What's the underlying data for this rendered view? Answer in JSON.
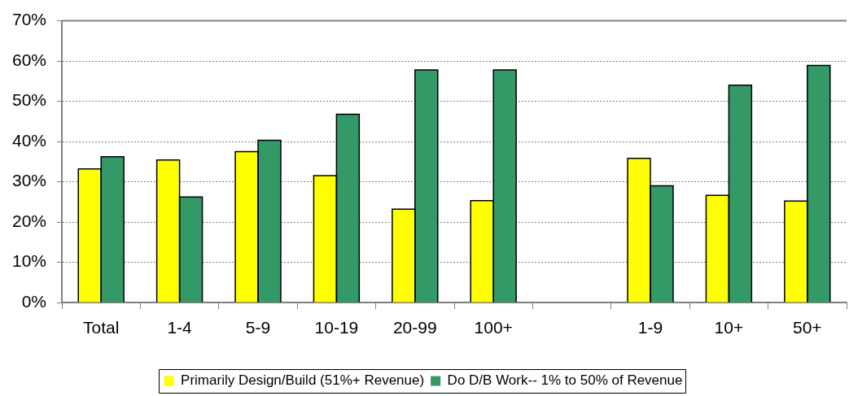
{
  "chart_data": {
    "type": "bar",
    "categories": [
      "Total",
      "1-4",
      "5-9",
      "10-19",
      "20-99",
      "100+",
      null,
      "1-9",
      "10+",
      "50+"
    ],
    "series": [
      {
        "name": "Primarily Design/Build (51%+ Revenue)",
        "color": "#ffff00",
        "values": [
          33.2,
          35.4,
          37.5,
          31.5,
          23.2,
          25.3,
          null,
          35.8,
          26.6,
          25.2
        ]
      },
      {
        "name": "Do D/B Work-- 1% to 50% of Revenue",
        "color": "#339966",
        "values": [
          36.2,
          26.2,
          40.3,
          46.8,
          57.8,
          57.8,
          null,
          29.0,
          54.0,
          58.9
        ]
      }
    ],
    "ylim": [
      0,
      70
    ],
    "yticks": [
      {
        "value": 0,
        "label": "0%"
      },
      {
        "value": 10,
        "label": "10%"
      },
      {
        "value": 20,
        "label": "20%"
      },
      {
        "value": 30,
        "label": "30%"
      },
      {
        "value": 40,
        "label": "40%"
      },
      {
        "value": 50,
        "label": "50%"
      },
      {
        "value": 60,
        "label": "60%"
      },
      {
        "value": 70,
        "label": "70%"
      }
    ],
    "grid": "y",
    "legend": "bottom"
  }
}
